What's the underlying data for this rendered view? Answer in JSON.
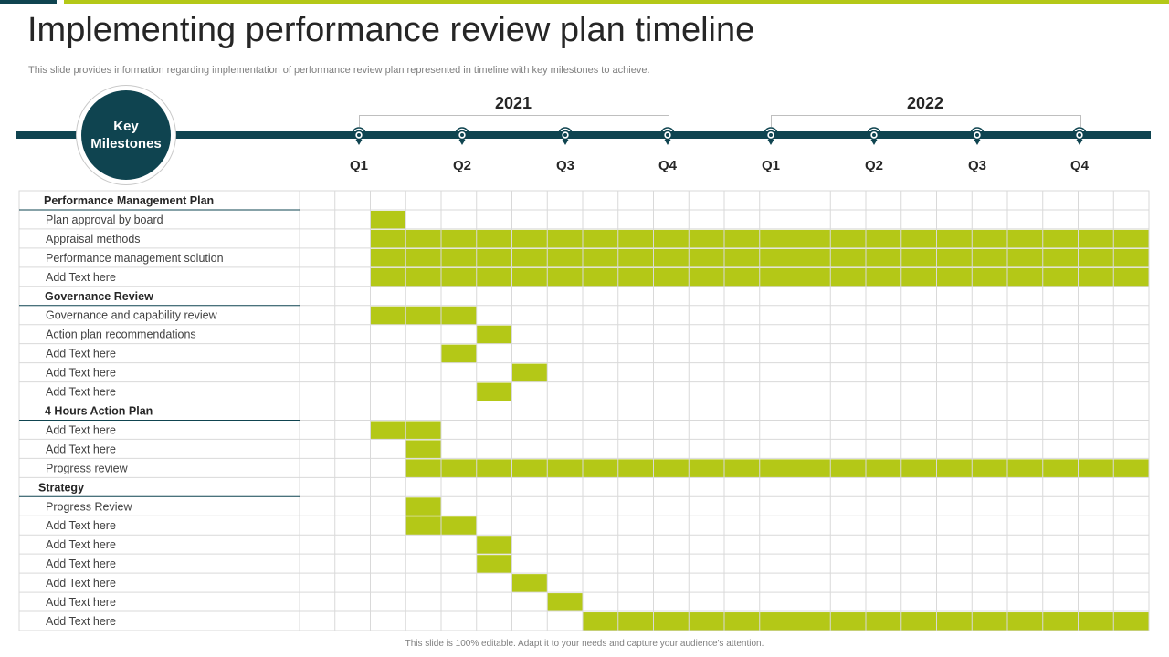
{
  "slide": {
    "title": "Implementing performance review plan timeline",
    "subtitle": "This slide provides information regarding implementation of performance review plan represented in timeline with key milestones to achieve.",
    "footer": "This slide is 100% editable. Adapt it to your needs and capture your audience's attention.",
    "milestone_label": "Key Milestones"
  },
  "colors": {
    "dark": "#0f4450",
    "accent": "#b4c817",
    "grid": "#d9d9d9",
    "text": "#404040"
  },
  "chart_data": {
    "type": "gantt",
    "years": [
      {
        "label": "2021",
        "quarters": [
          "Q1",
          "Q2",
          "Q3",
          "Q4"
        ]
      },
      {
        "label": "2022",
        "quarters": [
          "Q1",
          "Q2",
          "Q3",
          "Q4"
        ]
      }
    ],
    "rows": [
      {
        "label": "Performance Management Plan",
        "header": true
      },
      {
        "label": "Plan approval  by board",
        "bar": [
          2,
          2
        ]
      },
      {
        "label": "Appraisal methods",
        "bar": [
          2,
          23
        ]
      },
      {
        "label": "Performance  management  solution",
        "bar": [
          2,
          23
        ]
      },
      {
        "label": "Add Text here",
        "bar": [
          2,
          23
        ]
      },
      {
        "label": "Governance Review",
        "header": true
      },
      {
        "label": "Governance  and capability review",
        "bar": [
          2,
          4
        ]
      },
      {
        "label": "Action plan  recommendations",
        "bar": [
          5,
          5
        ]
      },
      {
        "label": "Add Text  here",
        "bar": [
          4,
          4
        ]
      },
      {
        "label": "Add Text  here",
        "bar": [
          6,
          6
        ]
      },
      {
        "label": "Add Text  here",
        "bar": [
          5,
          5
        ]
      },
      {
        "label": "4 Hours  Action Plan",
        "header": true
      },
      {
        "label": "Add Text here",
        "bar": [
          2,
          3
        ]
      },
      {
        "label": "Add Text here",
        "bar": [
          3,
          3
        ]
      },
      {
        "label": "Progress review",
        "bar": [
          3,
          23
        ]
      },
      {
        "label": "Strategy",
        "header": true
      },
      {
        "label": "Progress Review",
        "bar": [
          3,
          3
        ]
      },
      {
        "label": "Add Text  here",
        "bar": [
          3,
          4
        ]
      },
      {
        "label": "Add Text  here",
        "bar": [
          5,
          5
        ]
      },
      {
        "label": "Add Text  here",
        "bar": [
          5,
          5
        ]
      },
      {
        "label": "Add Text  here",
        "bar": [
          6,
          6
        ]
      },
      {
        "label": "Add Text  here",
        "bar": [
          7,
          7
        ]
      },
      {
        "label": "Add Text  here",
        "bar": [
          8,
          23
        ]
      }
    ]
  }
}
